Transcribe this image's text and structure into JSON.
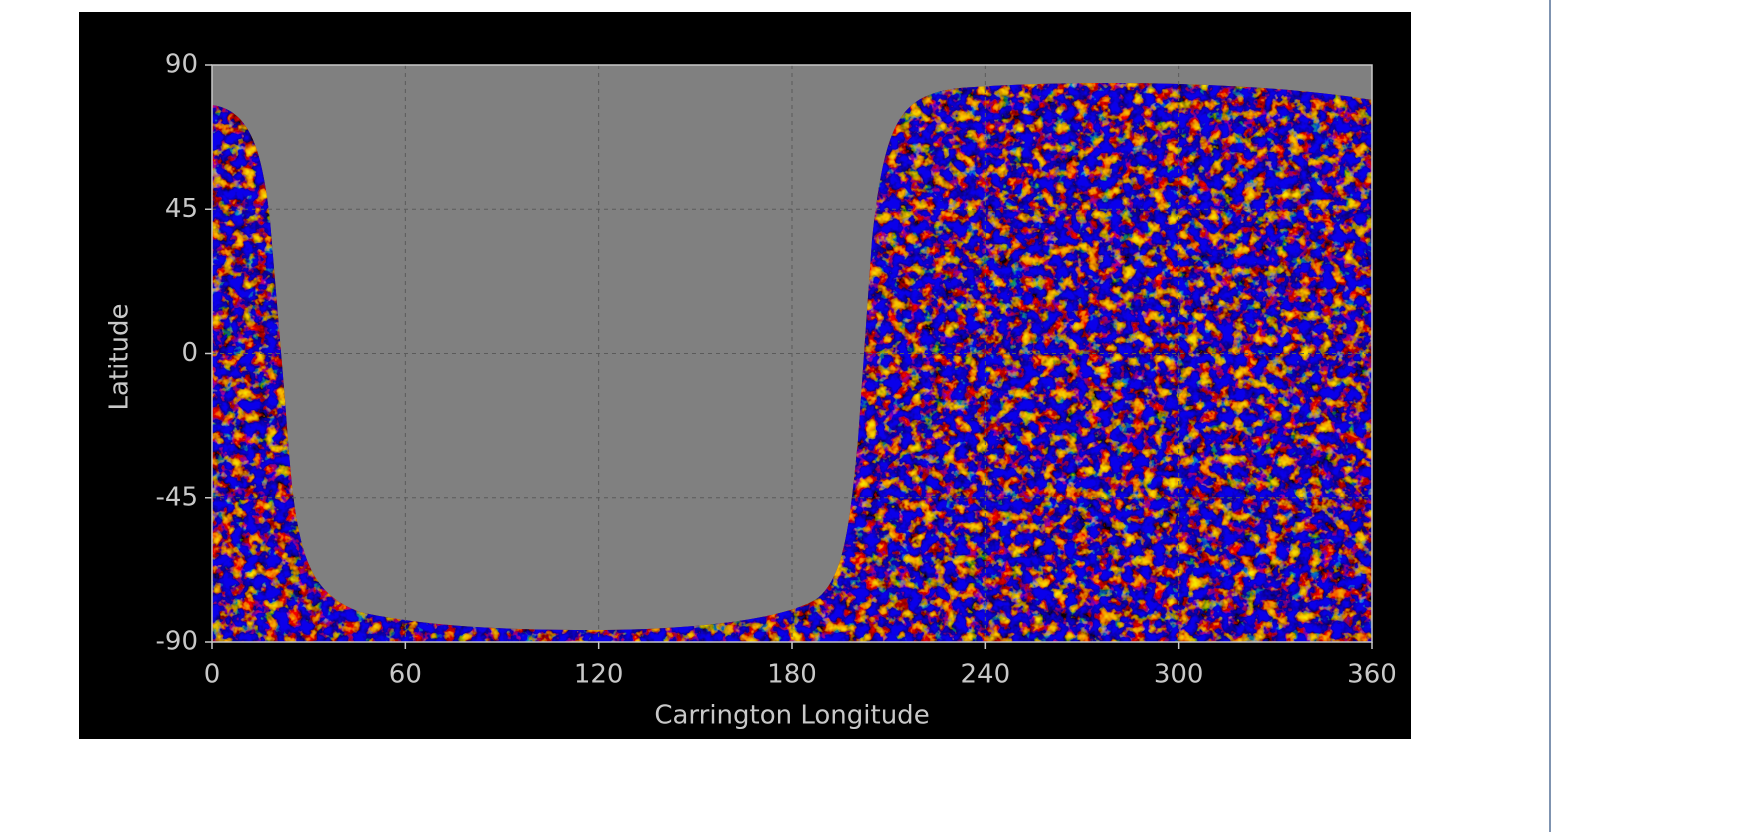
{
  "chart_data": {
    "type": "image",
    "xlabel": "Carrington Longitude",
    "ylabel": "Latitude",
    "xlim": [
      0,
      360
    ],
    "xticks": [
      0,
      60,
      120,
      180,
      240,
      300,
      360
    ],
    "ylim": [
      -90,
      90
    ],
    "yticks": [
      -90,
      -45,
      0,
      45,
      90
    ],
    "grid": true
  }
}
